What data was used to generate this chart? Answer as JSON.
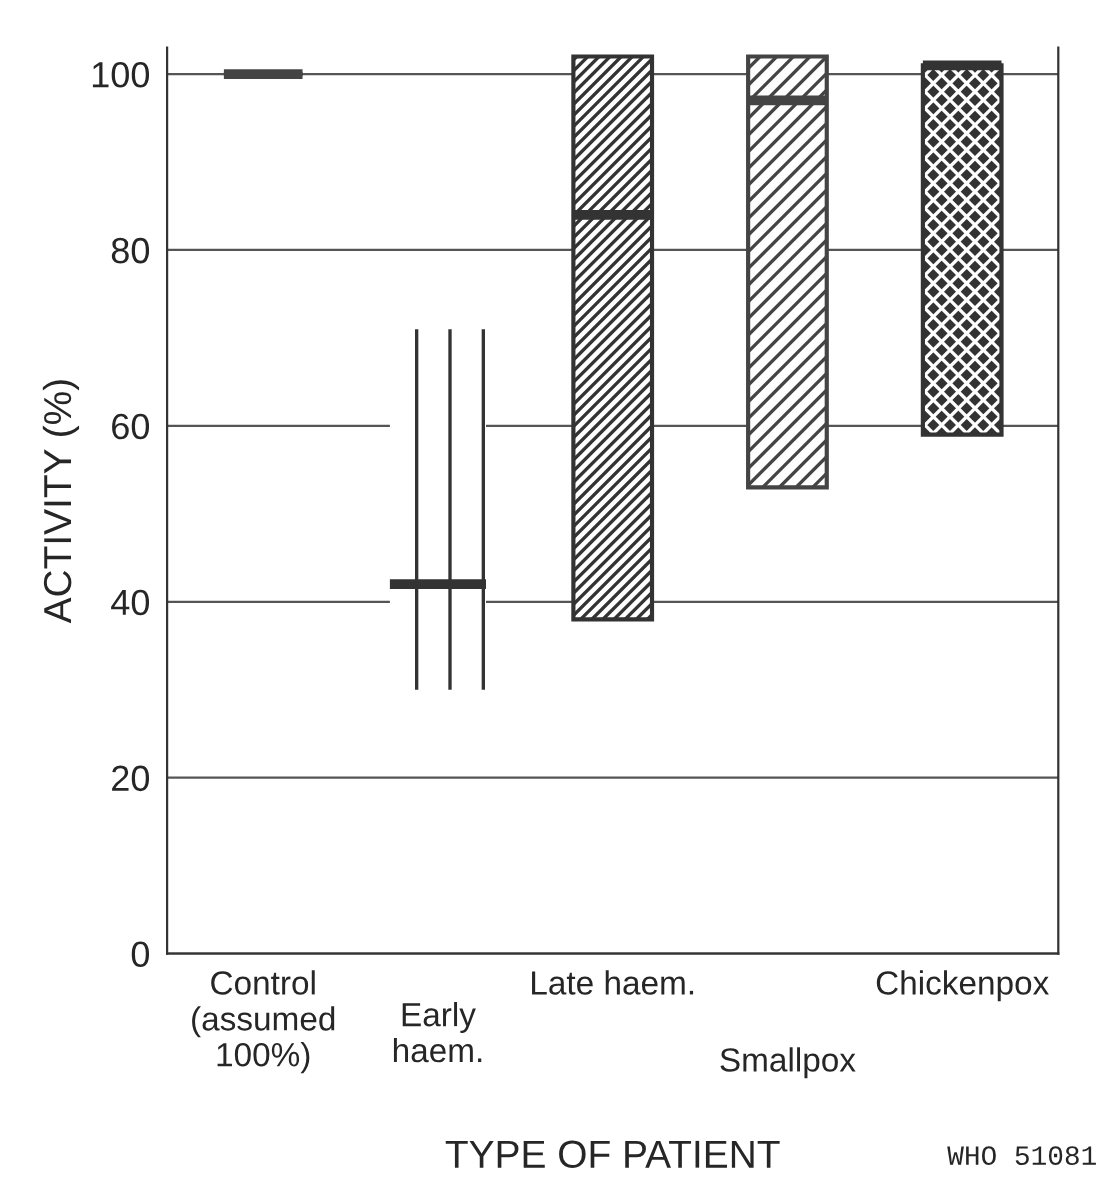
{
  "chart_data": {
    "type": "box",
    "xlabel": "TYPE OF PATIENT",
    "ylabel": "ACTIVITY (%)",
    "categories": [
      "Control\n(assumed\n100%)",
      "Early\nhaem.",
      "Late haem.",
      "Smallpox",
      "Chickenpox"
    ],
    "boxes": [
      {
        "low": 100,
        "q1": 100,
        "median": 100,
        "q3": 100,
        "high": 100
      },
      {
        "low": 30,
        "q1": 30,
        "median": 42,
        "q3": 71,
        "high": 71
      },
      {
        "low": 38,
        "q1": 38,
        "median": 84,
        "q3": 102,
        "high": 102
      },
      {
        "low": 53,
        "q1": 53,
        "median": 97,
        "q3": 102,
        "high": 102
      },
      {
        "low": 59,
        "q1": 59,
        "median": 101,
        "q3": 101,
        "high": 101
      }
    ],
    "colors": [
      "#444444",
      "#333333",
      "#333333",
      "#444444",
      "#333333"
    ],
    "ylim": [
      0,
      103
    ],
    "yticks": [
      0,
      20,
      40,
      60,
      80,
      100
    ],
    "grid": "y",
    "annotations": [
      "WHO 51081"
    ]
  }
}
